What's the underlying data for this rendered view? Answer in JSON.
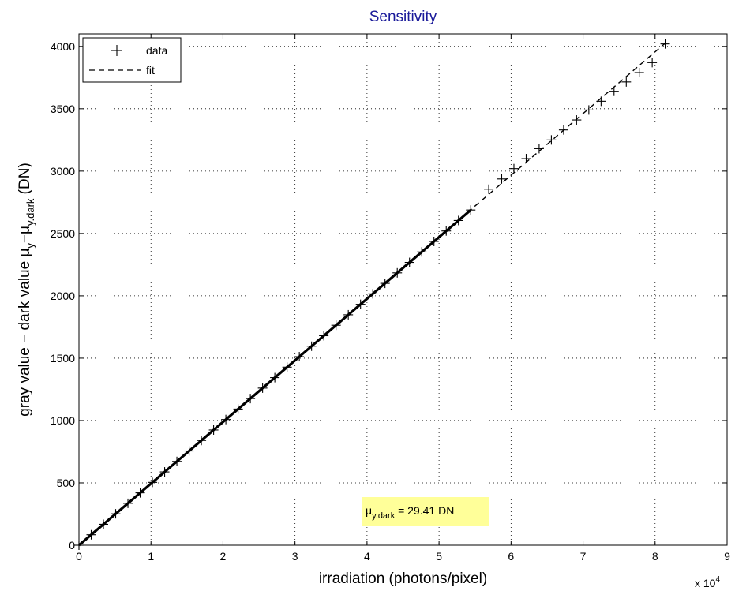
{
  "chart_data": {
    "type": "scatter",
    "title": "Sensitivity",
    "xlabel": "irradiation (photons/pixel)",
    "ylabel": "gray value − dark value",
    "ylabel_symbol": "μ",
    "ylabel_sub1": "y",
    "ylabel_sep": "−",
    "ylabel_sub2": "y.dark",
    "ylabel_unit": "(DN)",
    "x_multiplier": "x 10",
    "x_multiplier_exp": "4",
    "xlim": [
      0,
      90000
    ],
    "ylim": [
      0,
      4100
    ],
    "xticks": [
      0,
      10000,
      20000,
      30000,
      40000,
      50000,
      60000,
      70000,
      80000,
      90000
    ],
    "xtick_labels": [
      "0",
      "1",
      "2",
      "3",
      "4",
      "5",
      "6",
      "7",
      "8",
      "9"
    ],
    "yticks": [
      0,
      500,
      1000,
      1500,
      2000,
      2500,
      3000,
      3500,
      4000
    ],
    "ytick_labels": [
      "0",
      "500",
      "1000",
      "1500",
      "2000",
      "2500",
      "3000",
      "3500",
      "4000"
    ],
    "grid": true,
    "legend_position": "top-left",
    "series": [
      {
        "name": "data",
        "marker": "plus",
        "x": [
          0,
          1700,
          3400,
          5100,
          6800,
          8500,
          10200,
          11900,
          13600,
          15300,
          17000,
          18700,
          20400,
          22100,
          23800,
          25500,
          27200,
          28900,
          30600,
          32300,
          34000,
          35700,
          37400,
          39100,
          40800,
          42500,
          44200,
          45900,
          47600,
          49300,
          51000,
          52700,
          54400,
          56900,
          58700,
          60400,
          62100,
          63900,
          65600,
          67300,
          69100,
          70800,
          72500,
          74300,
          76000,
          77800,
          79600,
          81400
        ],
        "y": [
          0,
          84,
          168,
          252,
          336,
          420,
          504,
          588,
          672,
          756,
          840,
          924,
          1008,
          1092,
          1176,
          1260,
          1344,
          1428,
          1512,
          1596,
          1680,
          1764,
          1848,
          1932,
          2016,
          2100,
          2184,
          2268,
          2352,
          2436,
          2520,
          2604,
          2688,
          2855,
          2937,
          3020,
          3100,
          3180,
          3250,
          3330,
          3410,
          3490,
          3560,
          3640,
          3715,
          3790,
          3870,
          4020
        ]
      },
      {
        "name": "fit",
        "style": "dashed",
        "x": [
          0,
          81800
        ],
        "y": [
          0,
          4045
        ]
      }
    ],
    "annotation": {
      "symbol": "μ",
      "sub": "y.dark",
      "text": " = 29.41 DN",
      "background": "#ffff99"
    }
  }
}
